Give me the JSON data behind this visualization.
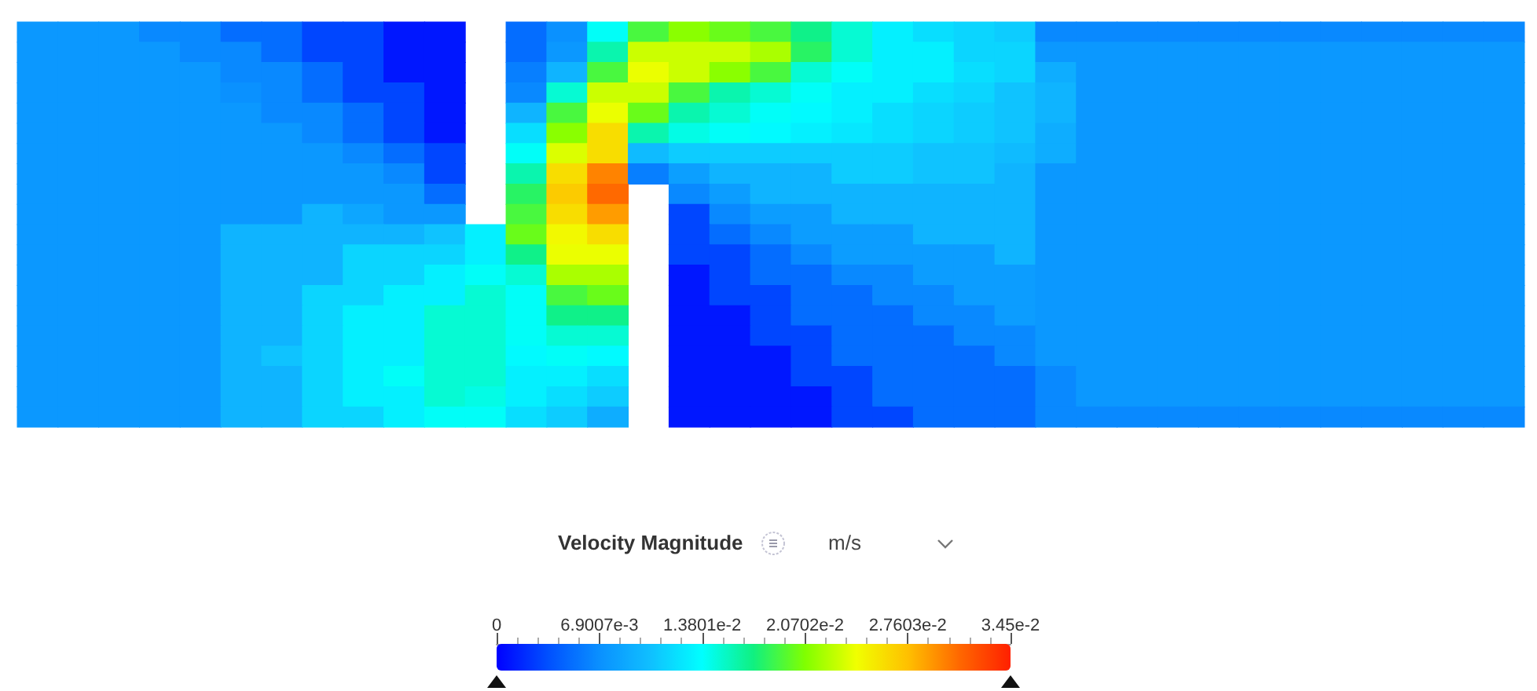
{
  "chart_data": {
    "type": "heatmap",
    "clabel": "Velocity Magnitude",
    "annotations": [
      "m/s"
    ],
    "categories": [
      null,
      null,
      null,
      null,
      null,
      null,
      null,
      null,
      null,
      null,
      null,
      null,
      null,
      null,
      null,
      null,
      null,
      null,
      null,
      null,
      null,
      null,
      null,
      null,
      null,
      null,
      null,
      null,
      null,
      null,
      null,
      null,
      null,
      null,
      null,
      null,
      null
    ],
    "y_categories": [
      null,
      null,
      null,
      null,
      null,
      null,
      null,
      null,
      null,
      null,
      null,
      null,
      null,
      null,
      null,
      null,
      null,
      null,
      null,
      null
    ],
    "clim": [
      0,
      0.0345
    ],
    "cticks": [
      0,
      {
        "value": 0.0069007,
        "label": "6.9007e-3"
      },
      {
        "value": 0.013801,
        "label": "1.3801e-2"
      },
      {
        "value": 0.020702,
        "label": "2.0702e-2"
      },
      {
        "value": 0.027603,
        "label": "2.7603e-2"
      },
      {
        "value": 0.0345,
        "label": "3.45e-2"
      }
    ],
    "cells": [
      [
        0.0075,
        0.0075,
        0.0075,
        0.0065,
        0.0065,
        0.005,
        0.005,
        0.003,
        0.003,
        0.001,
        0.001,
        null,
        0.005,
        0.007,
        0.014,
        0.019,
        0.021,
        0.02,
        0.019,
        0.017,
        0.015,
        0.013,
        0.012,
        0.0115,
        0.011,
        0.0065,
        0.0065,
        0.0065,
        0.0065,
        0.0065,
        0.0065,
        0.0065,
        0.0065,
        0.0065,
        0.0065,
        0.0065,
        0.0065
      ],
      [
        0.0075,
        0.0075,
        0.0075,
        0.0075,
        0.0065,
        0.0065,
        0.005,
        0.003,
        0.003,
        0.001,
        0.001,
        null,
        0.005,
        0.0075,
        0.016,
        0.023,
        0.023,
        0.023,
        0.022,
        0.018,
        0.015,
        0.013,
        0.013,
        0.0115,
        0.0115,
        0.0075,
        0.0075,
        0.0075,
        0.0075,
        0.0075,
        0.0075,
        0.0075,
        0.0075,
        0.0075,
        0.0075,
        0.0075,
        0.0075
      ],
      [
        0.0075,
        0.0075,
        0.0075,
        0.0075,
        0.0075,
        0.0065,
        0.0065,
        0.005,
        0.003,
        0.001,
        0.001,
        null,
        0.006,
        0.0095,
        0.019,
        0.024,
        0.023,
        0.021,
        0.019,
        0.015,
        0.014,
        0.013,
        0.013,
        0.012,
        0.0115,
        0.009,
        0.0075,
        0.0075,
        0.0075,
        0.0075,
        0.0075,
        0.0075,
        0.0075,
        0.0075,
        0.0075,
        0.0075,
        0.0075
      ],
      [
        0.0075,
        0.0075,
        0.0075,
        0.0075,
        0.0075,
        0.007,
        0.0065,
        0.005,
        0.003,
        0.003,
        0.001,
        null,
        0.0065,
        0.015,
        0.023,
        0.023,
        0.019,
        0.016,
        0.015,
        0.014,
        0.013,
        0.013,
        0.012,
        0.0115,
        0.0105,
        0.0095,
        0.0075,
        0.0075,
        0.0075,
        0.0075,
        0.0075,
        0.0075,
        0.0075,
        0.0075,
        0.0075,
        0.0075,
        0.0075
      ],
      [
        0.0075,
        0.0075,
        0.0075,
        0.0075,
        0.0075,
        0.0075,
        0.0065,
        0.0065,
        0.005,
        0.003,
        0.001,
        null,
        0.0095,
        0.019,
        0.024,
        0.02,
        0.016,
        0.015,
        0.014,
        0.0135,
        0.013,
        0.012,
        0.0115,
        0.011,
        0.0105,
        0.0095,
        0.0075,
        0.0075,
        0.0075,
        0.0075,
        0.0075,
        0.0075,
        0.0075,
        0.0075,
        0.0075,
        0.0075,
        0.0075
      ],
      [
        0.0075,
        0.0075,
        0.0075,
        0.0075,
        0.0075,
        0.0075,
        0.0075,
        0.0065,
        0.005,
        0.003,
        0.001,
        null,
        0.012,
        0.021,
        0.026,
        0.016,
        0.0145,
        0.014,
        0.0135,
        0.013,
        0.0125,
        0.012,
        0.0115,
        0.011,
        0.0105,
        0.009,
        0.0075,
        0.0075,
        0.0075,
        0.0075,
        0.0075,
        0.0075,
        0.0075,
        0.0075,
        0.0075,
        0.0075,
        0.0075
      ],
      [
        0.0075,
        0.0075,
        0.0075,
        0.0075,
        0.0075,
        0.0075,
        0.0075,
        0.0075,
        0.0065,
        0.005,
        0.003,
        null,
        0.014,
        0.0235,
        0.026,
        0.01,
        0.011,
        0.011,
        0.011,
        0.011,
        0.011,
        0.011,
        0.0105,
        0.0105,
        0.01,
        0.009,
        0.0075,
        0.0075,
        0.0075,
        0.0075,
        0.0075,
        0.0075,
        0.0075,
        0.0075,
        0.0075,
        0.0075,
        0.0075
      ],
      [
        0.0075,
        0.0075,
        0.0075,
        0.0075,
        0.0075,
        0.0075,
        0.0075,
        0.0075,
        0.0075,
        0.0065,
        0.003,
        null,
        0.016,
        0.026,
        0.03,
        0.006,
        0.008,
        0.0095,
        0.0095,
        0.0095,
        0.011,
        0.011,
        0.0105,
        0.0105,
        0.0095,
        0.0075,
        0.0075,
        0.0075,
        0.0075,
        0.0075,
        0.0075,
        0.0075,
        0.0075,
        0.0075,
        0.0075,
        0.0075,
        0.0075
      ],
      [
        0.0075,
        0.0075,
        0.0075,
        0.0075,
        0.0075,
        0.0075,
        0.0075,
        0.0075,
        0.0075,
        0.0075,
        0.005,
        null,
        0.018,
        0.027,
        0.031,
        null,
        0.0065,
        0.0078,
        0.0095,
        0.0095,
        0.0095,
        0.0095,
        0.0095,
        0.0095,
        0.0095,
        0.0075,
        0.0075,
        0.0075,
        0.0075,
        0.0075,
        0.0075,
        0.0075,
        0.0075,
        0.0075,
        0.0075,
        0.0075,
        0.0075
      ],
      [
        0.0075,
        0.0075,
        0.0075,
        0.0075,
        0.0075,
        0.0075,
        0.0075,
        0.0095,
        0.0085,
        0.0075,
        0.0075,
        null,
        0.019,
        0.026,
        0.029,
        null,
        0.003,
        0.0065,
        0.0078,
        0.0078,
        0.0095,
        0.0095,
        0.0095,
        0.0095,
        0.0095,
        0.0075,
        0.0075,
        0.0075,
        0.0075,
        0.0075,
        0.0075,
        0.0075,
        0.0075,
        0.0075,
        0.0075,
        0.0075,
        0.0075
      ],
      [
        0.0075,
        0.0075,
        0.0075,
        0.0075,
        0.0075,
        0.0095,
        0.0095,
        0.0095,
        0.0095,
        0.0095,
        0.0105,
        0.013,
        0.02,
        0.0245,
        0.026,
        null,
        0.003,
        0.005,
        0.0065,
        0.0078,
        0.0078,
        0.0078,
        0.0095,
        0.0095,
        0.0095,
        0.0075,
        0.0075,
        0.0075,
        0.0075,
        0.0075,
        0.0075,
        0.0075,
        0.0075,
        0.0075,
        0.0075,
        0.0075,
        0.0075
      ],
      [
        0.0075,
        0.0075,
        0.0075,
        0.0075,
        0.0075,
        0.0095,
        0.0095,
        0.0095,
        0.0115,
        0.0115,
        0.0115,
        0.013,
        0.017,
        0.024,
        0.024,
        null,
        0.003,
        0.003,
        0.005,
        0.0065,
        0.0078,
        0.0078,
        0.0078,
        0.0078,
        0.0095,
        0.0075,
        0.0075,
        0.0075,
        0.0075,
        0.0075,
        0.0075,
        0.0075,
        0.0075,
        0.0075,
        0.0075,
        0.0075,
        0.0075
      ],
      [
        0.0075,
        0.0075,
        0.0075,
        0.0075,
        0.0075,
        0.0095,
        0.0095,
        0.0095,
        0.0115,
        0.0115,
        0.013,
        0.014,
        0.015,
        0.022,
        0.022,
        null,
        0.001,
        0.003,
        0.005,
        0.005,
        0.0065,
        0.0065,
        0.0078,
        0.0078,
        0.0078,
        0.0075,
        0.0075,
        0.0075,
        0.0075,
        0.0075,
        0.0075,
        0.0075,
        0.0075,
        0.0075,
        0.0075,
        0.0075,
        0.0075
      ],
      [
        0.0075,
        0.0075,
        0.0075,
        0.0075,
        0.0075,
        0.0095,
        0.0095,
        0.0115,
        0.0115,
        0.013,
        0.013,
        0.015,
        0.014,
        0.019,
        0.02,
        null,
        0.001,
        0.003,
        0.003,
        0.005,
        0.005,
        0.0065,
        0.0065,
        0.0078,
        0.0078,
        0.0075,
        0.0075,
        0.0075,
        0.0075,
        0.0075,
        0.0075,
        0.0075,
        0.0075,
        0.0075,
        0.0075,
        0.0075,
        0.0075
      ],
      [
        0.0075,
        0.0075,
        0.0075,
        0.0075,
        0.0075,
        0.0095,
        0.0095,
        0.0115,
        0.013,
        0.013,
        0.015,
        0.015,
        0.014,
        0.017,
        0.017,
        null,
        0.001,
        0.001,
        0.003,
        0.005,
        0.005,
        0.005,
        0.0065,
        0.0065,
        0.0078,
        0.0075,
        0.0075,
        0.0075,
        0.0075,
        0.0075,
        0.0075,
        0.0075,
        0.0075,
        0.0075,
        0.0075,
        0.0075,
        0.0075
      ],
      [
        0.0075,
        0.0075,
        0.0075,
        0.0075,
        0.0075,
        0.0095,
        0.0095,
        0.0115,
        0.013,
        0.013,
        0.015,
        0.015,
        0.014,
        0.015,
        0.015,
        null,
        0.001,
        0.001,
        0.003,
        0.003,
        0.005,
        0.005,
        0.005,
        0.0065,
        0.0065,
        0.0075,
        0.0075,
        0.0075,
        0.0075,
        0.0075,
        0.0075,
        0.0075,
        0.0075,
        0.0075,
        0.0075,
        0.0075,
        0.0075
      ],
      [
        0.0075,
        0.0075,
        0.0075,
        0.0075,
        0.0075,
        0.0095,
        0.0105,
        0.0115,
        0.013,
        0.013,
        0.015,
        0.015,
        0.0135,
        0.014,
        0.0135,
        null,
        0.001,
        0.001,
        0.001,
        0.003,
        0.005,
        0.005,
        0.005,
        0.005,
        0.0065,
        0.0075,
        0.0075,
        0.0075,
        0.0075,
        0.0075,
        0.0075,
        0.0075,
        0.0075,
        0.0075,
        0.0075,
        0.0075,
        0.0075
      ],
      [
        0.0075,
        0.0075,
        0.0075,
        0.0075,
        0.0075,
        0.0095,
        0.0095,
        0.0115,
        0.013,
        0.014,
        0.015,
        0.015,
        0.013,
        0.013,
        0.012,
        null,
        0.001,
        0.001,
        0.001,
        0.003,
        0.003,
        0.005,
        0.005,
        0.005,
        0.005,
        0.0065,
        0.0075,
        0.0075,
        0.0075,
        0.0075,
        0.0075,
        0.0075,
        0.0075,
        0.0075,
        0.0075,
        0.0075,
        0.0075
      ],
      [
        0.0075,
        0.0075,
        0.0075,
        0.0075,
        0.0075,
        0.0095,
        0.0095,
        0.0115,
        0.013,
        0.013,
        0.015,
        0.0145,
        0.013,
        0.012,
        0.011,
        null,
        0.001,
        0.001,
        0.001,
        0.001,
        0.003,
        0.005,
        0.005,
        0.005,
        0.005,
        0.0065,
        0.0075,
        0.0075,
        0.0075,
        0.0075,
        0.0075,
        0.0075,
        0.0075,
        0.0075,
        0.0075,
        0.0075,
        0.0075
      ],
      [
        0.0075,
        0.0075,
        0.0075,
        0.0075,
        0.0075,
        0.0095,
        0.0095,
        0.0115,
        0.0115,
        0.013,
        0.014,
        0.014,
        0.012,
        0.011,
        0.009,
        null,
        0.001,
        0.001,
        0.001,
        0.001,
        0.003,
        0.003,
        0.005,
        0.005,
        0.005,
        0.0065,
        0.0065,
        0.0065,
        0.0065,
        0.0065,
        0.0065,
        0.0065,
        0.0065,
        0.0065,
        0.0065,
        0.0065,
        0.0065
      ]
    ]
  }
}
